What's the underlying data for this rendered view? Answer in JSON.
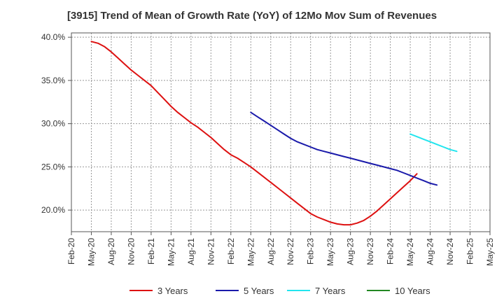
{
  "chart_data": {
    "type": "line",
    "title": "[3915]  Trend of Mean of Growth Rate (YoY) of 12Mo Mov Sum of Revenues",
    "xlabel": "",
    "ylabel": "",
    "x_ticks": [
      "Feb-20",
      "May-20",
      "Aug-20",
      "Nov-20",
      "Feb-21",
      "May-21",
      "Aug-21",
      "Nov-21",
      "Feb-22",
      "May-22",
      "Aug-22",
      "Nov-22",
      "Feb-23",
      "May-23",
      "Aug-23",
      "Nov-23",
      "Feb-24",
      "May-24",
      "Aug-24",
      "Nov-24",
      "Feb-25",
      "May-25"
    ],
    "y_ticks": [
      "40.0%",
      "35.0%",
      "30.0%",
      "25.0%",
      "20.0%"
    ],
    "y_tick_values": [
      40,
      35,
      30,
      25,
      20
    ],
    "ylim": [
      17.5,
      40.5
    ],
    "grid": true,
    "legend_position": "bottom",
    "series": [
      {
        "name": "3 Years",
        "color": "#dd1111",
        "start": "May-20",
        "values": [
          39.5,
          39.3,
          38.9,
          38.3,
          37.6,
          36.9,
          36.2,
          35.6,
          35.0,
          34.4,
          33.6,
          32.8,
          32.0,
          31.3,
          30.7,
          30.1,
          29.6,
          29.0,
          28.4,
          27.7,
          27.0,
          26.4,
          26.0,
          25.5,
          25.0,
          24.4,
          23.8,
          23.2,
          22.6,
          22.0,
          21.4,
          20.8,
          20.2,
          19.6,
          19.2,
          18.9,
          18.6,
          18.4,
          18.3,
          18.3,
          18.5,
          18.8,
          19.3,
          19.9,
          20.6,
          21.3,
          22.0,
          22.7,
          23.4,
          24.2
        ]
      },
      {
        "name": "5 Years",
        "color": "#1a1aaa",
        "start": "May-22",
        "values": [
          31.3,
          30.8,
          30.3,
          29.8,
          29.3,
          28.8,
          28.3,
          27.9,
          27.6,
          27.3,
          27.0,
          26.8,
          26.6,
          26.4,
          26.2,
          26.0,
          25.8,
          25.6,
          25.4,
          25.2,
          25.0,
          24.8,
          24.6,
          24.3,
          24.0,
          23.7,
          23.4,
          23.1,
          22.9
        ]
      },
      {
        "name": "7 Years",
        "color": "#22e5ee",
        "start": "May-24",
        "values": [
          28.8,
          28.5,
          28.2,
          27.9,
          27.6,
          27.3,
          27.0,
          26.8
        ]
      },
      {
        "name": "10 Years",
        "color": "#228822",
        "start": "Feb-25",
        "values": []
      }
    ]
  }
}
